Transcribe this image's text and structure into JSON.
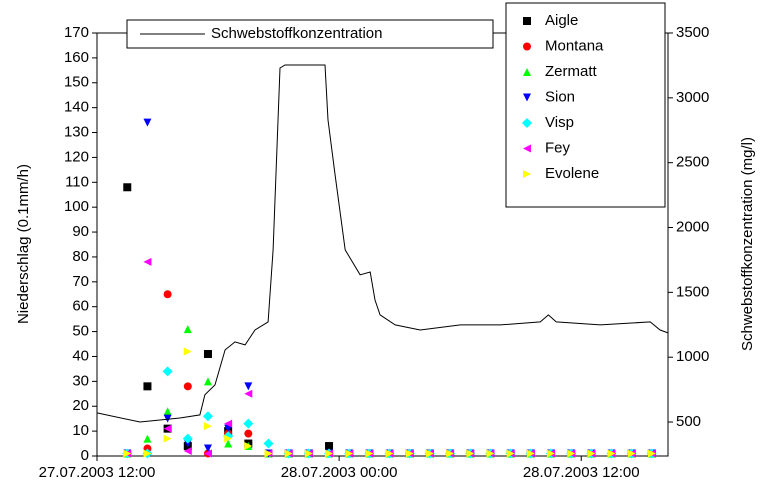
{
  "chart_data": {
    "type": "scatter",
    "ylabel": "Niederschlag (0.1mm/h)",
    "y2label": "Schwebstoffkonzentration (mg/l)",
    "xlim": [
      0,
      28.3
    ],
    "xticks": [
      {
        "value": 0,
        "label": "27.07.2003 12:00"
      },
      {
        "value": 12,
        "label": "28.07.2003 00:00"
      },
      {
        "value": 24,
        "label": "28.07.2003 12:00"
      }
    ],
    "ylim": [
      0,
      170
    ],
    "yticks": [
      0,
      10,
      20,
      30,
      40,
      50,
      60,
      70,
      80,
      90,
      100,
      110,
      120,
      130,
      140,
      150,
      160,
      170
    ],
    "y2lim": [
      238,
      3500
    ],
    "y2ticks": [
      500,
      1000,
      1500,
      2000,
      2500,
      3000,
      3500
    ],
    "x": [
      1.5,
      2.5,
      3.5,
      4.5,
      5.5,
      6.5,
      7.5,
      8.5,
      9.5,
      10.5,
      11.5,
      12.5,
      13.5,
      14.5,
      15.5,
      16.5,
      17.5,
      18.5,
      19.5,
      20.5,
      21.5,
      22.5,
      23.5,
      24.5,
      25.5,
      26.5,
      27.5
    ],
    "series": [
      {
        "name": "Aigle",
        "color": "#000000",
        "marker": "square",
        "values": [
          108,
          28,
          11,
          4,
          41,
          10,
          5,
          1,
          1,
          1,
          4,
          1,
          1,
          1,
          1,
          1,
          1,
          1,
          1,
          1,
          1,
          1,
          1,
          1,
          1,
          1,
          1
        ]
      },
      {
        "name": "Montana",
        "color": "#ff0000",
        "marker": "circle",
        "values": [
          1,
          3,
          65,
          28,
          1,
          9,
          9,
          1,
          1,
          1,
          1,
          1,
          1,
          1,
          1,
          1,
          1,
          1,
          1,
          1,
          1,
          1,
          1,
          1,
          1,
          1,
          1
        ]
      },
      {
        "name": "Zermatt",
        "color": "#00ff00",
        "marker": "triangle-up",
        "values": [
          1,
          7,
          18,
          51,
          30,
          5,
          4,
          1,
          1,
          1,
          1,
          1,
          1,
          1,
          1,
          1,
          1,
          1,
          1,
          1,
          1,
          1,
          1,
          1,
          1,
          1,
          1
        ]
      },
      {
        "name": "Sion",
        "color": "#0000ff",
        "marker": "triangle-down",
        "values": [
          1,
          134,
          15,
          5,
          3,
          11,
          28,
          1,
          1,
          1,
          1,
          1,
          1,
          1,
          1,
          1,
          1,
          1,
          1,
          1,
          1,
          1,
          1,
          1,
          1,
          1,
          1
        ]
      },
      {
        "name": "Visp",
        "color": "#00ffff",
        "marker": "diamond",
        "values": [
          1,
          1,
          34,
          7,
          16,
          8,
          13,
          5,
          1,
          1,
          1,
          1,
          1,
          1,
          1,
          1,
          1,
          1,
          1,
          1,
          1,
          1,
          1,
          1,
          1,
          1,
          1
        ]
      },
      {
        "name": "Fey",
        "color": "#ff00ff",
        "marker": "triangle-left",
        "values": [
          1,
          78,
          11,
          2,
          1,
          13,
          25,
          1,
          1,
          1,
          1,
          1,
          1,
          1,
          1,
          1,
          1,
          1,
          1,
          1,
          1,
          1,
          1,
          1,
          1,
          1,
          1
        ]
      },
      {
        "name": "Evolene",
        "color": "#ffff00",
        "marker": "triangle-right",
        "values": [
          1,
          1,
          7,
          42,
          12,
          7,
          4,
          1,
          1,
          1,
          1,
          1,
          1,
          1,
          1,
          1,
          1,
          1,
          1,
          1,
          1,
          1,
          1,
          1,
          1,
          1,
          1
        ]
      },
      {
        "name": "Schwebstoffkonzentration",
        "color": "#000000",
        "type": "line",
        "axis": "y2",
        "x": [
          0,
          2.13,
          4.11,
          5.1,
          5.35,
          5.85,
          6.35,
          6.84,
          7.34,
          7.83,
          8.48,
          8.73,
          9.07,
          9.32,
          10.06,
          11.3,
          11.45,
          11.8,
          12.3,
          13.04,
          13.54,
          13.78,
          14.03,
          14.78,
          16.02,
          18.01,
          19.99,
          21.97,
          22.37,
          22.76,
          24.94,
          27.42,
          27.91,
          28.3
        ],
        "values": [
          570,
          500,
          531,
          555,
          710,
          787,
          1056,
          1118,
          1095,
          1210,
          1272,
          1827,
          3230,
          3253,
          3253,
          3253,
          2830,
          2405,
          1827,
          1635,
          1657,
          1441,
          1326,
          1249,
          1210,
          1249,
          1249,
          1272,
          1326,
          1272,
          1249,
          1272,
          1210,
          1187
        ]
      }
    ]
  }
}
